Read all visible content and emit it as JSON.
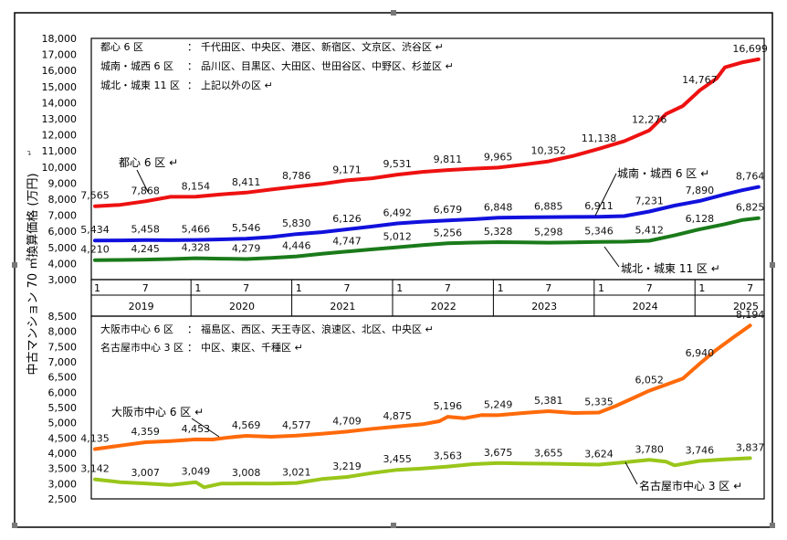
{
  "colors": {
    "toshin": "#ee1111",
    "jonan": "#1111dd",
    "johoku": "#1a7a1a",
    "osaka": "#ff6a0a",
    "nagoya": "#99c61a",
    "frame": "#000000"
  },
  "ylabel": "中古マンション 70 ㎡換算価格 (万円)",
  "ylabel_mark": "↵",
  "chart_data": [
    {
      "type": "line",
      "panel": "tokyo",
      "ylim": [
        3000,
        18000
      ],
      "ytick_labels": [
        "3,000",
        "4,000",
        "5,000",
        "6,000",
        "7,000",
        "8,000",
        "9,000",
        "10,000",
        "11,000",
        "12,000",
        "13,000",
        "14,000",
        "15,000",
        "16,000",
        "17,000",
        "18,000"
      ],
      "month_labels": [
        "1",
        "7",
        "1",
        "7",
        "1",
        "7",
        "1",
        "7",
        "1",
        "7",
        "1",
        "7",
        "1",
        "7"
      ],
      "year_labels": [
        "2019",
        "2020",
        "2021",
        "2022",
        "2023",
        "2024",
        "2025"
      ],
      "legend": [
        {
          "name": "都心 6 区",
          "colon": "：",
          "wards": "千代田区、中央区、港区、新宿区、文京区、渋谷区 ↵"
        },
        {
          "name": "城南・城西 6 区",
          "colon": "：",
          "wards": "品川区、目黒区、大田区、世田谷区、中野区、杉並区 ↵"
        },
        {
          "name": "城北・城東 11 区",
          "colon": "：",
          "wards": "上記以外の区 ↵"
        }
      ],
      "series": [
        {
          "name": "都心 6 区",
          "label": "都心 6 区 ↵",
          "color": "#ee1111",
          "points": [
            [
              0,
              7565
            ],
            [
              3,
              7650
            ],
            [
              6,
              7868
            ],
            [
              9,
              8150
            ],
            [
              12,
              8154
            ],
            [
              15,
              8300
            ],
            [
              18,
              8411
            ],
            [
              21,
              8600
            ],
            [
              24,
              8786
            ],
            [
              27,
              8950
            ],
            [
              30,
              9171
            ],
            [
              33,
              9300
            ],
            [
              36,
              9531
            ],
            [
              39,
              9700
            ],
            [
              42,
              9811
            ],
            [
              45,
              9900
            ],
            [
              48,
              9965
            ],
            [
              51,
              10150
            ],
            [
              54,
              10352
            ],
            [
              57,
              10700
            ],
            [
              60,
              11138
            ],
            [
              63,
              11600
            ],
            [
              66,
              12276
            ],
            [
              68,
              13300
            ],
            [
              70,
              13800
            ],
            [
              72,
              14767
            ],
            [
              74,
              15500
            ],
            [
              75,
              16200
            ],
            [
              77,
              16500
            ],
            [
              79,
              16699
            ]
          ],
          "labels": [
            [
              0,
              7565
            ],
            [
              6,
              7868
            ],
            [
              12,
              8154
            ],
            [
              18,
              8411
            ],
            [
              24,
              8786
            ],
            [
              30,
              9171
            ],
            [
              36,
              9531
            ],
            [
              42,
              9811
            ],
            [
              48,
              9965
            ],
            [
              54,
              10352
            ],
            [
              60,
              11138
            ],
            [
              66,
              12276
            ],
            [
              72,
              14767
            ],
            [
              78,
              16699
            ]
          ]
        },
        {
          "name": "城南・城西 6 区",
          "label": "城南・城西 6 区 ↵",
          "color": "#1111dd",
          "points": [
            [
              0,
              5434
            ],
            [
              3,
              5440
            ],
            [
              6,
              5458
            ],
            [
              9,
              5450
            ],
            [
              12,
              5466
            ],
            [
              15,
              5500
            ],
            [
              18,
              5546
            ],
            [
              21,
              5650
            ],
            [
              24,
              5830
            ],
            [
              27,
              5950
            ],
            [
              30,
              6126
            ],
            [
              33,
              6300
            ],
            [
              36,
              6492
            ],
            [
              39,
              6600
            ],
            [
              42,
              6679
            ],
            [
              45,
              6750
            ],
            [
              48,
              6848
            ],
            [
              51,
              6870
            ],
            [
              54,
              6885
            ],
            [
              57,
              6900
            ],
            [
              60,
              6911
            ],
            [
              63,
              6950
            ],
            [
              66,
              7231
            ],
            [
              69,
              7600
            ],
            [
              72,
              7890
            ],
            [
              75,
              8300
            ],
            [
              77,
              8550
            ],
            [
              79,
              8764
            ]
          ],
          "labels": [
            [
              0,
              5434
            ],
            [
              6,
              5458
            ],
            [
              12,
              5466
            ],
            [
              18,
              5546
            ],
            [
              24,
              5830
            ],
            [
              30,
              6126
            ],
            [
              36,
              6492
            ],
            [
              42,
              6679
            ],
            [
              48,
              6848
            ],
            [
              54,
              6885
            ],
            [
              60,
              6911
            ],
            [
              66,
              7231
            ],
            [
              72,
              7890
            ],
            [
              78,
              8764
            ]
          ]
        },
        {
          "name": "城北・城東 11 区",
          "label": "城北・城東 11 区 ↵",
          "color": "#1a7a1a",
          "points": [
            [
              0,
              4210
            ],
            [
              3,
              4220
            ],
            [
              6,
              4245
            ],
            [
              9,
              4280
            ],
            [
              12,
              4328
            ],
            [
              15,
              4300
            ],
            [
              18,
              4279
            ],
            [
              21,
              4350
            ],
            [
              24,
              4446
            ],
            [
              27,
              4600
            ],
            [
              30,
              4747
            ],
            [
              33,
              4880
            ],
            [
              36,
              5012
            ],
            [
              39,
              5150
            ],
            [
              42,
              5256
            ],
            [
              45,
              5300
            ],
            [
              48,
              5328
            ],
            [
              51,
              5310
            ],
            [
              54,
              5298
            ],
            [
              57,
              5320
            ],
            [
              60,
              5346
            ],
            [
              63,
              5360
            ],
            [
              66,
              5412
            ],
            [
              69,
              5750
            ],
            [
              72,
              6128
            ],
            [
              75,
              6450
            ],
            [
              77,
              6700
            ],
            [
              79,
              6825
            ]
          ],
          "labels": [
            [
              0,
              4210
            ],
            [
              6,
              4245
            ],
            [
              12,
              4328
            ],
            [
              18,
              4279
            ],
            [
              24,
              4446
            ],
            [
              30,
              4747
            ],
            [
              36,
              5012
            ],
            [
              42,
              5256
            ],
            [
              48,
              5328
            ],
            [
              54,
              5298
            ],
            [
              60,
              5346
            ],
            [
              66,
              5412
            ],
            [
              72,
              6128
            ],
            [
              78,
              6825
            ]
          ]
        }
      ]
    },
    {
      "type": "line",
      "panel": "osaka_nagoya",
      "ylim": [
        2500,
        8500
      ],
      "ytick_labels": [
        "2,500",
        "3,000",
        "3,500",
        "4,000",
        "4,500",
        "5,000",
        "5,500",
        "6,000",
        "6,500",
        "7,000",
        "7,500",
        "8,000",
        "8,500"
      ],
      "legend": [
        {
          "name": "大阪市中心 6 区",
          "colon": "：",
          "wards": "福島区、西区、天王寺区、浪速区、北区、中央区 ↵"
        },
        {
          "name": "名古屋市中心 3 区",
          "colon": "：",
          "wards": "中区、東区、千種区 ↵"
        }
      ],
      "series": [
        {
          "name": "大阪市中心 6 区",
          "label": "大阪市中心 6 区 ↵",
          "color": "#ff6a0a",
          "points": [
            [
              0,
              4135
            ],
            [
              3,
              4250
            ],
            [
              6,
              4359
            ],
            [
              9,
              4400
            ],
            [
              12,
              4453
            ],
            [
              14,
              4450
            ],
            [
              16,
              4520
            ],
            [
              18,
              4569
            ],
            [
              21,
              4540
            ],
            [
              24,
              4577
            ],
            [
              27,
              4640
            ],
            [
              30,
              4709
            ],
            [
              33,
              4800
            ],
            [
              36,
              4875
            ],
            [
              39,
              4950
            ],
            [
              41,
              5050
            ],
            [
              42,
              5196
            ],
            [
              44,
              5150
            ],
            [
              46,
              5250
            ],
            [
              48,
              5249
            ],
            [
              51,
              5320
            ],
            [
              54,
              5381
            ],
            [
              57,
              5320
            ],
            [
              60,
              5335
            ],
            [
              62,
              5550
            ],
            [
              64,
              5800
            ],
            [
              66,
              6052
            ],
            [
              68,
              6250
            ],
            [
              70,
              6450
            ],
            [
              72,
              6940
            ],
            [
              74,
              7400
            ],
            [
              76,
              7800
            ],
            [
              78,
              8194
            ]
          ],
          "labels": [
            [
              0,
              4135
            ],
            [
              6,
              4359
            ],
            [
              12,
              4453
            ],
            [
              18,
              4569
            ],
            [
              24,
              4577
            ],
            [
              30,
              4709
            ],
            [
              36,
              4875
            ],
            [
              42,
              5196
            ],
            [
              48,
              5249
            ],
            [
              54,
              5381
            ],
            [
              60,
              5335
            ],
            [
              66,
              6052
            ],
            [
              72,
              6940
            ],
            [
              78,
              8194
            ]
          ]
        },
        {
          "name": "名古屋市中心 3 区",
          "label": "名古屋市中心 3 区 ↵",
          "color": "#99c61a",
          "points": [
            [
              0,
              3142
            ],
            [
              3,
              3050
            ],
            [
              6,
              3007
            ],
            [
              9,
              2960
            ],
            [
              12,
              3049
            ],
            [
              13,
              2880
            ],
            [
              15,
              3000
            ],
            [
              18,
              3008
            ],
            [
              21,
              3000
            ],
            [
              24,
              3021
            ],
            [
              27,
              3150
            ],
            [
              30,
              3219
            ],
            [
              33,
              3350
            ],
            [
              36,
              3455
            ],
            [
              39,
              3500
            ],
            [
              42,
              3563
            ],
            [
              45,
              3640
            ],
            [
              48,
              3675
            ],
            [
              51,
              3660
            ],
            [
              54,
              3655
            ],
            [
              57,
              3640
            ],
            [
              60,
              3624
            ],
            [
              63,
              3700
            ],
            [
              66,
              3780
            ],
            [
              68,
              3720
            ],
            [
              69,
              3600
            ],
            [
              72,
              3746
            ],
            [
              75,
              3800
            ],
            [
              78,
              3837
            ]
          ],
          "labels": [
            [
              0,
              3142
            ],
            [
              6,
              3007
            ],
            [
              12,
              3049
            ],
            [
              18,
              3008
            ],
            [
              24,
              3021
            ],
            [
              30,
              3219
            ],
            [
              36,
              3455
            ],
            [
              42,
              3563
            ],
            [
              48,
              3675
            ],
            [
              54,
              3655
            ],
            [
              60,
              3624
            ],
            [
              66,
              3780
            ],
            [
              72,
              3746
            ],
            [
              78,
              3837
            ]
          ]
        }
      ]
    }
  ]
}
